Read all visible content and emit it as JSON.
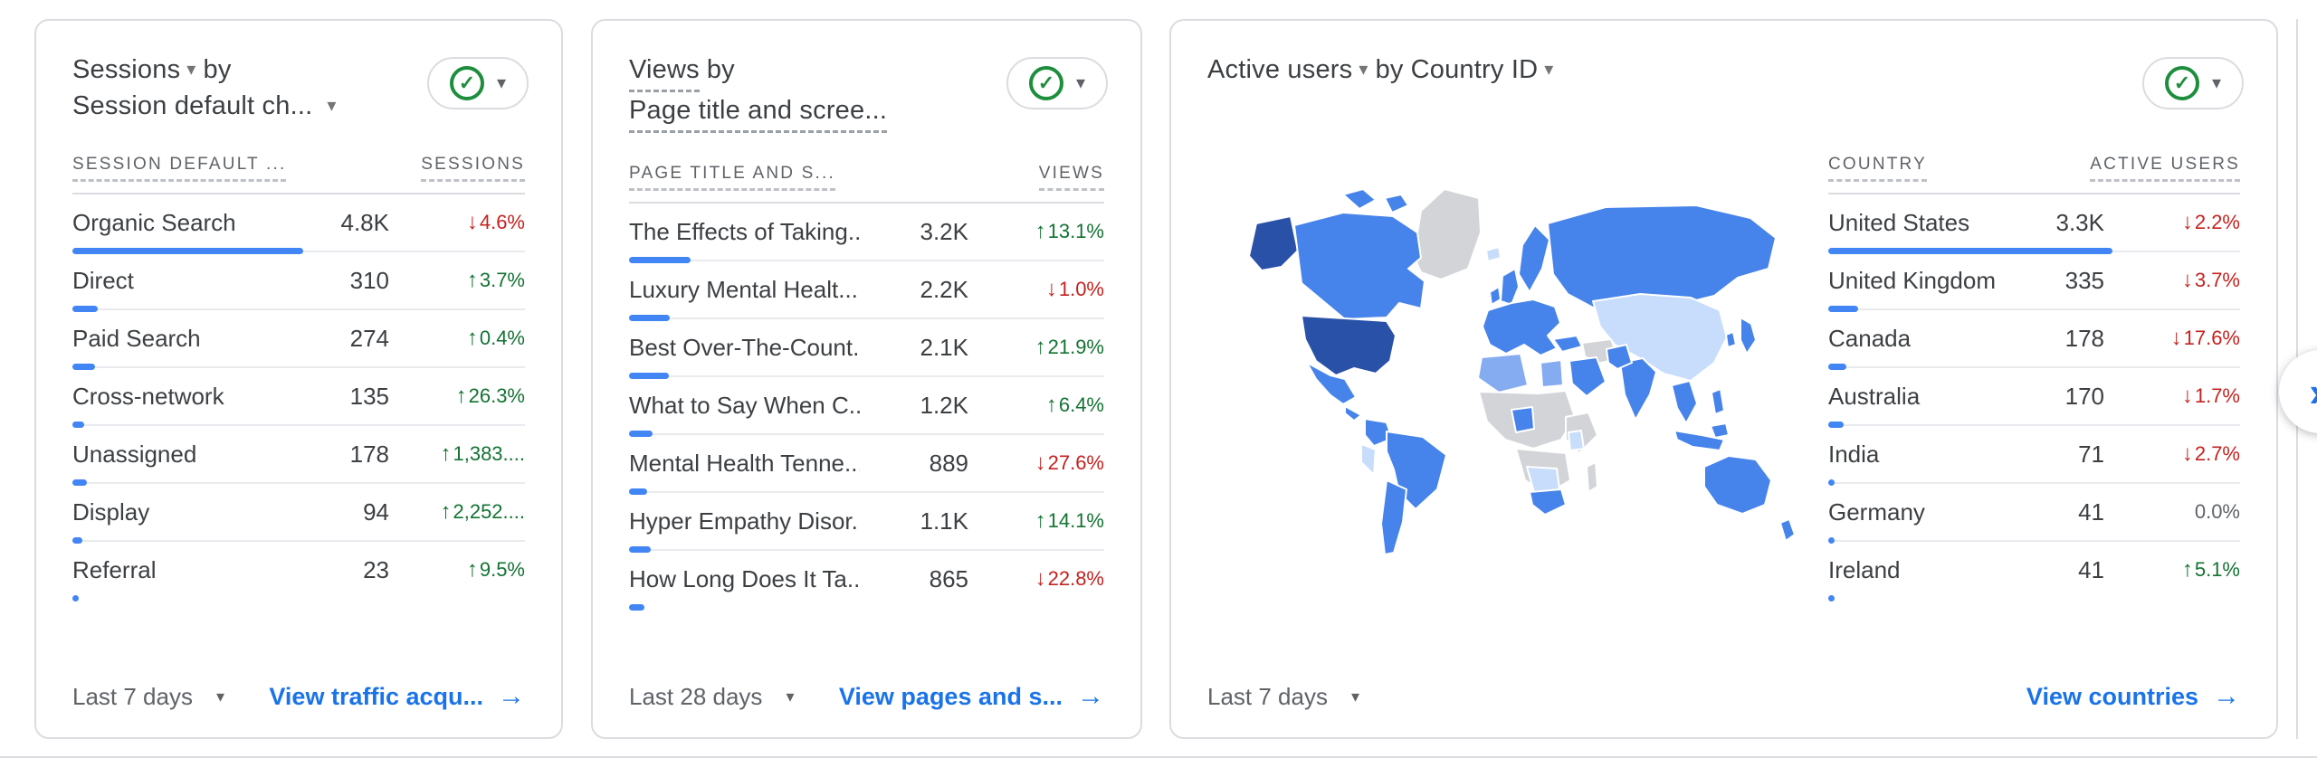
{
  "icons": {
    "caret": "▾",
    "arrow_right": "→",
    "up": "↑",
    "down": "↓",
    "check": "✓",
    "next_chevron": "»"
  },
  "palette": {
    "bar_blue": "#4285f4",
    "link_blue": "#1a73e8",
    "green": "#137333",
    "red": "#c5221f",
    "neutral_gray": "#5f6368",
    "border_gray": "#dadce0"
  },
  "cards": [
    {
      "title": {
        "metric": "Sessions",
        "joiner": "by",
        "dimension": "Session default ch..."
      },
      "columns": {
        "dimension": "SESSION DEFAULT ...",
        "metric": "SESSIONS"
      },
      "rows": [
        {
          "label": "Organic Search",
          "value": "4.8K",
          "change": "4.6%",
          "dir": "down",
          "bar_pct": 51
        },
        {
          "label": "Direct",
          "value": "310",
          "change": "3.7%",
          "dir": "up",
          "bar_pct": 5.5
        },
        {
          "label": "Paid Search",
          "value": "274",
          "change": "0.4%",
          "dir": "up",
          "bar_pct": 5
        },
        {
          "label": "Cross-network",
          "value": "135",
          "change": "26.3%",
          "dir": "up",
          "bar_pct": 2.5
        },
        {
          "label": "Unassigned",
          "value": "178",
          "change": "1,383....",
          "dir": "up",
          "bar_pct": 3.2
        },
        {
          "label": "Display",
          "value": "94",
          "change": "2,252....",
          "dir": "up",
          "bar_pct": 2.2
        },
        {
          "label": "Referral",
          "value": "23",
          "change": "9.5%",
          "dir": "up",
          "bar_pct": 0.8
        }
      ],
      "footer": {
        "range": "Last 7 days",
        "link": "View traffic acqu..."
      }
    },
    {
      "title": {
        "metric": "Views",
        "joiner": "by",
        "dimension": "Page title and scree..."
      },
      "columns": {
        "dimension": "PAGE TITLE AND S...",
        "metric": "VIEWS"
      },
      "rows": [
        {
          "label": "The Effects of Taking...",
          "value": "3.2K",
          "change": "13.1%",
          "dir": "up",
          "bar_pct": 13
        },
        {
          "label": "Luxury Mental Healt...",
          "value": "2.2K",
          "change": "1.0%",
          "dir": "down",
          "bar_pct": 8.6
        },
        {
          "label": "Best Over-The-Count...",
          "value": "2.1K",
          "change": "21.9%",
          "dir": "up",
          "bar_pct": 8.4
        },
        {
          "label": "What to Say When C...",
          "value": "1.2K",
          "change": "6.4%",
          "dir": "up",
          "bar_pct": 5
        },
        {
          "label": "Mental Health Tenne...",
          "value": "889",
          "change": "27.6%",
          "dir": "down",
          "bar_pct": 3.8
        },
        {
          "label": "Hyper Empathy Disor...",
          "value": "1.1K",
          "change": "14.1%",
          "dir": "up",
          "bar_pct": 4.5
        },
        {
          "label": "How Long Does It Ta...",
          "value": "865",
          "change": "22.8%",
          "dir": "down",
          "bar_pct": 3.3
        }
      ],
      "footer": {
        "range": "Last 28 days",
        "link": "View pages and s..."
      }
    },
    {
      "title": {
        "metric": "Active users",
        "joiner": "by",
        "dimension": "Country ID"
      },
      "columns": {
        "dimension": "COUNTRY",
        "metric": "ACTIVE USERS"
      },
      "rows": [
        {
          "label": "United States",
          "value": "3.3K",
          "change": "2.2%",
          "dir": "down",
          "bar_pct": 69
        },
        {
          "label": "United Kingdom",
          "value": "335",
          "change": "3.7%",
          "dir": "down",
          "bar_pct": 7.3
        },
        {
          "label": "Canada",
          "value": "178",
          "change": "17.6%",
          "dir": "down",
          "bar_pct": 4.5
        },
        {
          "label": "Australia",
          "value": "170",
          "change": "1.7%",
          "dir": "down",
          "bar_pct": 3.8
        },
        {
          "label": "India",
          "value": "71",
          "change": "2.7%",
          "dir": "down",
          "bar_pct": 1.6
        },
        {
          "label": "Germany",
          "value": "41",
          "change": "0.0%",
          "dir": "flat",
          "bar_pct": 1.0
        },
        {
          "label": "Ireland",
          "value": "41",
          "change": "5.1%",
          "dir": "up",
          "bar_pct": 1.0
        }
      ],
      "footer": {
        "range": "Last 7 days",
        "link": "View countries"
      }
    }
  ],
  "map": {
    "palette": {
      "dark": "#2a51a8",
      "medium": "#4683ea",
      "medium_light": "#85abf1",
      "light": "#c7ddfb",
      "none": "#d2d4d8"
    },
    "regions": {
      "greenland": "none",
      "alaska": "dark",
      "canada": "medium",
      "canada-islands": "medium",
      "united-states": "dark",
      "mexico": "medium",
      "central-america": "medium",
      "colombia-venezuela": "medium",
      "peru": "light",
      "brazil": "medium",
      "argentina-chile": "medium",
      "iceland": "light",
      "united-kingdom": "medium",
      "ireland": "medium",
      "scandinavia": "medium",
      "europe": "medium",
      "russia": "medium",
      "central-asia-china": "light",
      "turkey": "medium",
      "middle-east": "none",
      "saudi-arabia": "medium",
      "north-africa": "medium_light",
      "egypt": "medium_light",
      "sahara": "none",
      "nigeria": "medium",
      "east-africa": "none",
      "kenya": "light",
      "central-south-africa": "none",
      "namibia-botswana": "light",
      "south-africa": "medium",
      "madagascar": "none",
      "india": "medium",
      "pakistan": "medium",
      "southeast-asia": "medium",
      "indonesia": "medium",
      "borneo": "medium",
      "philippines": "medium",
      "japan": "medium",
      "korea": "medium",
      "australia": "medium",
      "new-zealand": "medium"
    }
  }
}
